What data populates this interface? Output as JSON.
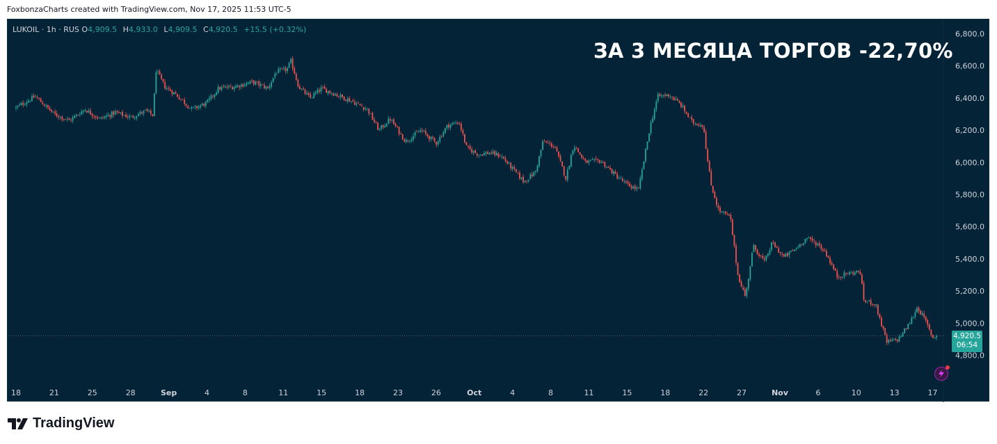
{
  "credit": "FoxbonzaCharts created with TradingView.com, Nov 17, 2025 11:53 UTC-5",
  "legend": {
    "symbol": "LUKOIL · 1h · RUS",
    "o_label": "O",
    "o_value": "4,909.5",
    "h_label": "H",
    "h_value": "4,933.0",
    "l_label": "L",
    "l_value": "4,909.5",
    "c_label": "C",
    "c_value": "4,920.5",
    "change": "+15.5 (+0.32%)"
  },
  "headline": "ЗА 3 МЕСЯЦА ТОРГОВ -22,70%",
  "price_badge": {
    "price": "4,920.5",
    "countdown": "06:54"
  },
  "branding": {
    "name": "TradingView"
  },
  "colors": {
    "background": "#042337",
    "up": "#26a69a",
    "down": "#ef5350",
    "text": "#d1d4dc",
    "accent": "#26a69a"
  },
  "chart_data": {
    "type": "candlestick",
    "title": "ЗА 3 МЕСЯЦА ТОРГОВ -22,70%",
    "symbol": "LUKOIL",
    "interval": "1h",
    "exchange": "RUS",
    "ylim": [
      4700,
      6900
    ],
    "y_ticks": [
      "6,800.0",
      "6,600.0",
      "6,400.0",
      "6,200.0",
      "6,000.0",
      "5,800.0",
      "5,600.0",
      "5,400.0",
      "5,200.0",
      "5,000.0",
      "4,800.0"
    ],
    "y_tick_values": [
      6800,
      6600,
      6400,
      6200,
      6000,
      5800,
      5600,
      5400,
      5200,
      5000,
      4800
    ],
    "x_ticks": [
      "18",
      "21",
      "25",
      "28",
      "Sep",
      "4",
      "8",
      "11",
      "15",
      "18",
      "23",
      "26",
      "Oct",
      "4",
      "8",
      "11",
      "15",
      "18",
      "22",
      "27",
      "Nov",
      "6",
      "10",
      "13",
      "17"
    ],
    "x_tick_index": [
      0,
      10,
      20,
      30,
      40,
      50,
      60,
      70,
      80,
      90,
      100,
      110,
      120,
      130,
      140,
      150,
      160,
      170,
      180,
      190,
      200,
      210,
      220,
      230,
      240
    ],
    "last_price": 4920.5,
    "grid": false,
    "series": [
      {
        "name": "LUKOIL",
        "anchors": [
          [
            0,
            6340
          ],
          [
            5,
            6410
          ],
          [
            10,
            6300
          ],
          [
            14,
            6260
          ],
          [
            18,
            6330
          ],
          [
            22,
            6270
          ],
          [
            26,
            6310
          ],
          [
            30,
            6280
          ],
          [
            34,
            6320
          ],
          [
            36,
            6290
          ],
          [
            36.5,
            6580
          ],
          [
            39,
            6470
          ],
          [
            42,
            6420
          ],
          [
            46,
            6330
          ],
          [
            50,
            6370
          ],
          [
            53,
            6460
          ],
          [
            57,
            6470
          ],
          [
            62,
            6500
          ],
          [
            66,
            6460
          ],
          [
            68,
            6560
          ],
          [
            71,
            6580
          ],
          [
            72,
            6630
          ],
          [
            74,
            6470
          ],
          [
            77,
            6400
          ],
          [
            80,
            6460
          ],
          [
            84,
            6420
          ],
          [
            88,
            6380
          ],
          [
            92,
            6330
          ],
          [
            95,
            6200
          ],
          [
            98,
            6270
          ],
          [
            102,
            6130
          ],
          [
            106,
            6200
          ],
          [
            110,
            6120
          ],
          [
            113,
            6230
          ],
          [
            116,
            6250
          ],
          [
            118,
            6090
          ],
          [
            121,
            6050
          ],
          [
            124,
            6060
          ],
          [
            127,
            6040
          ],
          [
            130,
            5960
          ],
          [
            133,
            5880
          ],
          [
            136,
            5940
          ],
          [
            138,
            6130
          ],
          [
            141,
            6100
          ],
          [
            144,
            5900
          ],
          [
            146,
            6110
          ],
          [
            149,
            6000
          ],
          [
            153,
            6010
          ],
          [
            157,
            5920
          ],
          [
            160,
            5860
          ],
          [
            163,
            5830
          ],
          [
            166,
            6220
          ],
          [
            168,
            6410
          ],
          [
            171,
            6420
          ],
          [
            174,
            6360
          ],
          [
            177,
            6250
          ],
          [
            180,
            6230
          ],
          [
            181,
            6020
          ],
          [
            182,
            5860
          ],
          [
            184,
            5700
          ],
          [
            187,
            5660
          ],
          [
            189,
            5300
          ],
          [
            191,
            5160
          ],
          [
            193,
            5480
          ],
          [
            196,
            5380
          ],
          [
            198,
            5500
          ],
          [
            201,
            5410
          ],
          [
            204,
            5460
          ],
          [
            207,
            5530
          ],
          [
            210,
            5490
          ],
          [
            212,
            5440
          ],
          [
            215,
            5290
          ],
          [
            218,
            5310
          ],
          [
            221,
            5320
          ],
          [
            222,
            5140
          ],
          [
            225,
            5120
          ],
          [
            228,
            4880
          ],
          [
            231,
            4900
          ],
          [
            234,
            5000
          ],
          [
            236,
            5100
          ],
          [
            238,
            5020
          ],
          [
            240,
            4910
          ],
          [
            241,
            4920.5
          ]
        ]
      }
    ]
  }
}
